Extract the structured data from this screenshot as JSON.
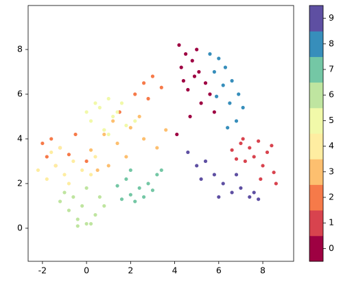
{
  "chart_data": {
    "type": "scatter",
    "xlim": [
      -2.65,
      9.4
    ],
    "ylim": [
      -1.48,
      9.97
    ],
    "xticks": [
      -2,
      0,
      2,
      4,
      6,
      8
    ],
    "yticks": [
      0,
      2,
      4,
      6,
      8
    ],
    "colorbar": true,
    "series": [
      {
        "name": "0",
        "color": "#9e0142",
        "x": [
          4.2,
          4.5,
          4.8,
          5.1,
          5.4,
          4.3,
          4.9,
          5.6,
          5.2,
          4.6,
          5.0,
          4.4,
          5.8,
          4.1,
          4.7
        ],
        "y": [
          8.2,
          7.8,
          7.5,
          7.0,
          6.5,
          7.2,
          6.8,
          6.0,
          5.6,
          6.2,
          8.0,
          6.6,
          5.2,
          4.2,
          5.0
        ]
      },
      {
        "name": "1",
        "color": "#d8434e",
        "x": [
          6.6,
          7.0,
          7.4,
          7.8,
          8.2,
          8.5,
          7.2,
          7.6,
          8.0,
          6.8,
          8.4,
          7.1,
          7.9,
          8.6
        ],
        "y": [
          3.5,
          3.8,
          3.6,
          3.9,
          3.4,
          2.5,
          3.0,
          3.2,
          2.8,
          3.1,
          3.7,
          4.0,
          2.2,
          2.0
        ]
      },
      {
        "name": "2",
        "color": "#f67a49",
        "x": [
          -2.0,
          -1.6,
          -1.2,
          -0.8,
          -1.8,
          -1.4,
          2.2,
          2.6,
          3.0,
          3.4,
          2.8,
          -0.5,
          1.5,
          0.0
        ],
        "y": [
          3.8,
          4.0,
          3.6,
          3.3,
          3.2,
          2.8,
          6.0,
          6.5,
          6.8,
          6.3,
          5.8,
          4.2,
          5.2,
          3.0
        ]
      },
      {
        "name": "3",
        "color": "#fdbf6f",
        "x": [
          0.2,
          0.8,
          1.4,
          2.0,
          2.6,
          3.2,
          1.0,
          1.8,
          2.4,
          0.5,
          3.6,
          1.2
        ],
        "y": [
          3.5,
          4.2,
          3.8,
          4.5,
          4.0,
          3.6,
          2.8,
          3.2,
          5.0,
          2.6,
          4.4,
          4.8
        ]
      },
      {
        "name": "4",
        "color": "#feeda1",
        "x": [
          -2.2,
          -1.8,
          -1.4,
          -1.0,
          -0.6,
          -0.2,
          0.4,
          -1.2,
          -0.8,
          0.2,
          -1.6,
          0.8
        ],
        "y": [
          2.6,
          2.2,
          2.8,
          2.4,
          3.0,
          2.6,
          3.2,
          3.6,
          2.0,
          2.4,
          3.4,
          4.4
        ]
      },
      {
        "name": "5",
        "color": "#f1f9a9",
        "x": [
          0.2,
          0.6,
          1.0,
          1.4,
          1.8,
          0.4,
          0.8,
          1.2,
          1.6,
          2.2,
          0.0,
          1.0
        ],
        "y": [
          4.8,
          5.4,
          5.8,
          5.2,
          4.6,
          5.6,
          4.4,
          5.0,
          5.6,
          4.8,
          5.2,
          4.2
        ]
      },
      {
        "name": "6",
        "color": "#bfe5a0",
        "x": [
          -1.2,
          -0.8,
          -0.4,
          0.0,
          0.4,
          0.8,
          -0.6,
          -0.2,
          0.2,
          -1.0,
          0.6,
          -0.4,
          0.0
        ],
        "y": [
          1.2,
          0.8,
          0.4,
          0.2,
          0.6,
          1.0,
          1.4,
          1.0,
          0.2,
          1.6,
          1.4,
          0.1,
          1.8
        ]
      },
      {
        "name": "7",
        "color": "#74c7a5",
        "x": [
          1.6,
          2.0,
          2.4,
          2.8,
          3.2,
          1.8,
          2.2,
          2.6,
          3.0,
          1.4,
          3.4,
          2.0
        ],
        "y": [
          1.3,
          1.5,
          1.8,
          2.0,
          2.4,
          2.2,
          1.2,
          1.4,
          1.7,
          1.9,
          2.6,
          2.6
        ]
      },
      {
        "name": "8",
        "color": "#378ebb",
        "x": [
          5.6,
          6.0,
          6.3,
          6.6,
          6.9,
          7.1,
          5.8,
          6.2,
          6.5,
          6.8,
          5.9,
          6.4
        ],
        "y": [
          7.8,
          7.6,
          7.2,
          6.6,
          6.0,
          5.4,
          7.0,
          6.4,
          5.6,
          4.8,
          5.9,
          4.5
        ]
      },
      {
        "name": "9",
        "color": "#5e4fa2",
        "x": [
          4.6,
          5.0,
          5.4,
          5.8,
          6.2,
          6.6,
          7.0,
          7.4,
          7.8,
          5.2,
          6.0,
          6.8,
          7.6
        ],
        "y": [
          3.4,
          2.8,
          3.0,
          2.4,
          2.0,
          1.6,
          1.8,
          1.4,
          1.3,
          2.2,
          1.4,
          2.4,
          1.6
        ]
      }
    ]
  }
}
